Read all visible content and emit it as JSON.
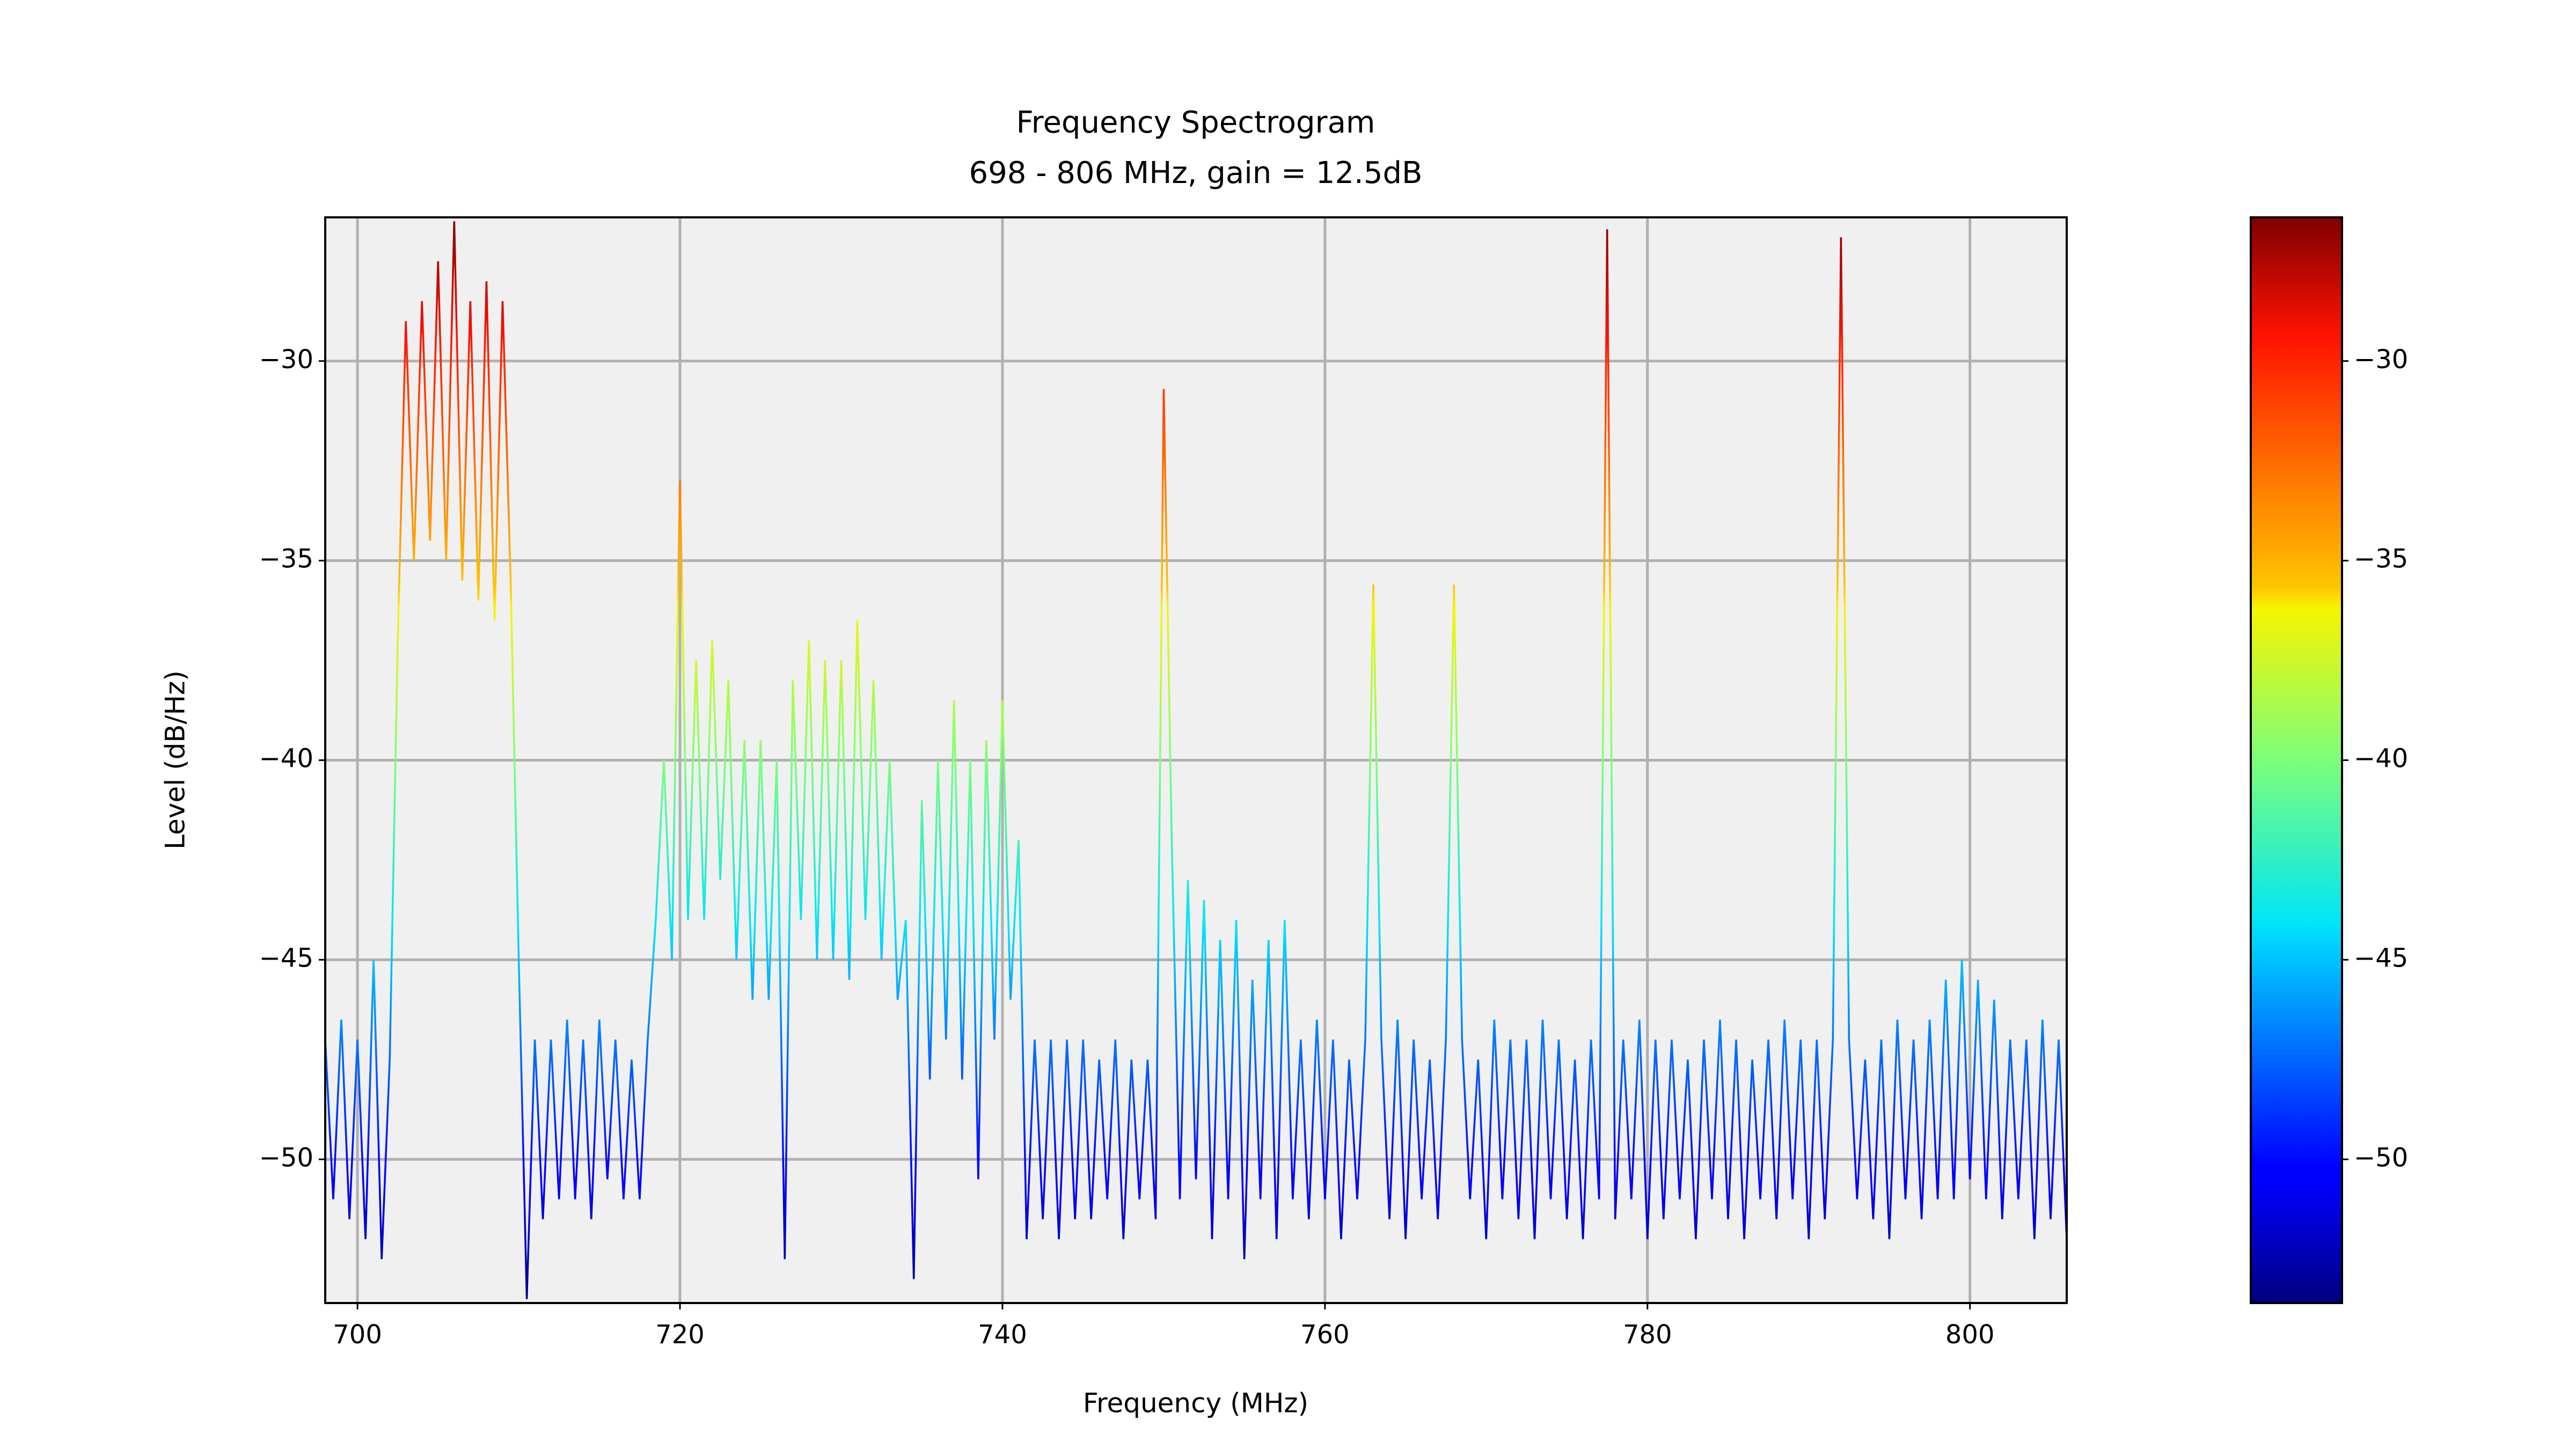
{
  "chart_data": {
    "type": "line",
    "title": "Frequency Spectrogram",
    "subtitle": "698 - 806 MHz, gain = 12.5dB",
    "xlabel": "Frequency (MHz)",
    "ylabel": "Level (dB/Hz)",
    "colormap": "jet",
    "clim": [
      -53.6,
      -26.4
    ],
    "cbar_ticks": [
      {
        "value": -30,
        "label": "−30"
      },
      {
        "value": -35,
        "label": "−35"
      },
      {
        "value": -40,
        "label": "−40"
      },
      {
        "value": -45,
        "label": "−45"
      },
      {
        "value": -50,
        "label": "−50"
      }
    ],
    "xlim": [
      698,
      806
    ],
    "ylim": [
      -53.6,
      -26.4
    ],
    "xticks": [
      700,
      720,
      740,
      760,
      780,
      800
    ],
    "yticks": [
      {
        "value": -30,
        "label": "−30"
      },
      {
        "value": -35,
        "label": "−35"
      },
      {
        "value": -40,
        "label": "−40"
      },
      {
        "value": -45,
        "label": "−45"
      },
      {
        "value": -50,
        "label": "−50"
      }
    ],
    "grid": true,
    "x": [
      698,
      698.5,
      699,
      699.5,
      700,
      700.5,
      701,
      701.5,
      702,
      702.5,
      703,
      703.5,
      704,
      704.5,
      705,
      705.5,
      706,
      706.5,
      707,
      707.5,
      708,
      708.5,
      709,
      709.5,
      710,
      710.5,
      711,
      711.5,
      712,
      712.5,
      713,
      713.5,
      714,
      714.5,
      715,
      715.5,
      716,
      716.5,
      717,
      717.5,
      718,
      718.5,
      719,
      719.5,
      720,
      720.5,
      721,
      721.5,
      722,
      722.5,
      723,
      723.5,
      724,
      724.5,
      725,
      725.5,
      726,
      726.5,
      727,
      727.5,
      728,
      728.5,
      729,
      729.5,
      730,
      730.5,
      731,
      731.5,
      732,
      732.5,
      733,
      733.5,
      734,
      734.5,
      735,
      735.5,
      736,
      736.5,
      737,
      737.5,
      738,
      738.5,
      739,
      739.5,
      740,
      740.5,
      741,
      741.5,
      742,
      742.5,
      743,
      743.5,
      744,
      744.5,
      745,
      745.5,
      746,
      746.5,
      747,
      747.5,
      748,
      748.5,
      749,
      749.5,
      750,
      750.5,
      751,
      751.5,
      752,
      752.5,
      753,
      753.5,
      754,
      754.5,
      755,
      755.5,
      756,
      756.5,
      757,
      757.5,
      758,
      758.5,
      759,
      759.5,
      760,
      760.5,
      761,
      761.5,
      762,
      762.5,
      763,
      763.5,
      764,
      764.5,
      765,
      765.5,
      766,
      766.5,
      767,
      767.5,
      768,
      768.5,
      769,
      769.5,
      770,
      770.5,
      771,
      771.5,
      772,
      772.5,
      773,
      773.5,
      774,
      774.5,
      775,
      775.5,
      776,
      776.5,
      777,
      777.5,
      778,
      778.5,
      779,
      779.5,
      780,
      780.5,
      781,
      781.5,
      782,
      782.5,
      783,
      783.5,
      784,
      784.5,
      785,
      785.5,
      786,
      786.5,
      787,
      787.5,
      788,
      788.5,
      789,
      789.5,
      790,
      790.5,
      791,
      791.5,
      792,
      792.5,
      793,
      793.5,
      794,
      794.5,
      795,
      795.5,
      796,
      796.5,
      797,
      797.5,
      798,
      798.5,
      799,
      799.5,
      800,
      800.5,
      801,
      801.5,
      802,
      802.5,
      803,
      803.5,
      804,
      804.5,
      805,
      805.5,
      806
    ],
    "values": [
      -47,
      -51,
      -46.5,
      -51.5,
      -47,
      -52,
      -45,
      -52.5,
      -47.5,
      -37,
      -29,
      -35,
      -28.5,
      -34.5,
      -27.5,
      -35,
      -26.5,
      -35.5,
      -28.5,
      -36,
      -28,
      -36.5,
      -28.5,
      -35.5,
      -45,
      -53.5,
      -47,
      -51.5,
      -47,
      -51,
      -46.5,
      -51,
      -47,
      -51.5,
      -46.5,
      -50.5,
      -47,
      -51,
      -47.5,
      -51,
      -47,
      -44,
      -40,
      -45,
      -33,
      -44,
      -37.5,
      -44,
      -37,
      -43,
      -38,
      -45,
      -39.5,
      -46,
      -39.5,
      -46,
      -40,
      -52.5,
      -38,
      -44,
      -37,
      -45,
      -37.5,
      -45,
      -37.5,
      -45.5,
      -36.5,
      -44,
      -38,
      -45,
      -40,
      -46,
      -44,
      -53,
      -41,
      -48,
      -40,
      -47,
      -38.5,
      -48,
      -40,
      -50.5,
      -39.5,
      -47,
      -38.5,
      -46,
      -42,
      -52,
      -47,
      -51.5,
      -47,
      -52,
      -47,
      -51.5,
      -47,
      -51.5,
      -47.5,
      -51,
      -47,
      -52,
      -47.5,
      -51,
      -47.5,
      -51.5,
      -30.7,
      -42,
      -51,
      -43,
      -50.5,
      -43.5,
      -52,
      -44.5,
      -51,
      -44,
      -52.5,
      -45.5,
      -51,
      -44.5,
      -52,
      -44,
      -51,
      -47,
      -51.5,
      -46.5,
      -51,
      -47,
      -52,
      -47.5,
      -51,
      -47,
      -35.6,
      -47,
      -51.5,
      -46.5,
      -52,
      -47,
      -51,
      -47.5,
      -51.5,
      -47,
      -35.6,
      -47,
      -51,
      -47.5,
      -52,
      -46.5,
      -51,
      -47,
      -51.5,
      -47,
      -52,
      -46.5,
      -51,
      -47,
      -51.5,
      -47.5,
      -52,
      -47,
      -51,
      -26.7,
      -51.5,
      -47,
      -51,
      -46.5,
      -52,
      -47,
      -51.5,
      -47,
      -51,
      -47.5,
      -52,
      -47,
      -51,
      -46.5,
      -51.5,
      -47,
      -52,
      -47.5,
      -51,
      -47,
      -51.5,
      -46.5,
      -51,
      -47,
      -52,
      -47,
      -51.5,
      -47,
      -26.9,
      -47,
      -51,
      -47.5,
      -51.5,
      -47,
      -52,
      -46.5,
      -51,
      -47,
      -51.5,
      -46.5,
      -51,
      -45.5,
      -51,
      -45,
      -50.5,
      -45.5,
      -51,
      -46,
      -51.5,
      -47,
      -51,
      -47,
      -52,
      -46.5,
      -51.5,
      -47,
      -52
    ]
  }
}
